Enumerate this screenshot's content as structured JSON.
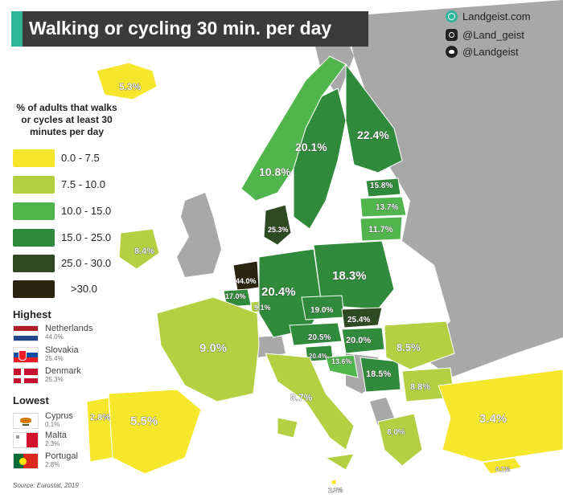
{
  "header": {
    "title": "Walking or cycling 30 min. per day"
  },
  "social": {
    "website": "Landgeist.com",
    "instagram": "@Land_geist",
    "twitter": "@Landgeist"
  },
  "legend": {
    "title_lines": [
      "% of adults that walks",
      "or cycles at least 30",
      "minutes per day"
    ],
    "bins": [
      {
        "label": "0.0  -  7.5",
        "color": "#f5e72c"
      },
      {
        "label": "7.5  -  10.0",
        "color": "#b4cf42"
      },
      {
        "label": "10.0 - 15.0",
        "color": "#4fb54c"
      },
      {
        "label": "15.0 - 25.0",
        "color": "#2f8a3c"
      },
      {
        "label": "25.0 - 30.0",
        "color": "#2e4a22"
      },
      {
        "label": ">30.0",
        "color": "#2b2510"
      }
    ]
  },
  "highest": {
    "heading": "Highest",
    "items": [
      {
        "name": "Netherlands",
        "value": "44.0%",
        "flag": "netherlands-flag"
      },
      {
        "name": "Slovakia",
        "value": "25.4%",
        "flag": "slovakia-flag"
      },
      {
        "name": "Denmark",
        "value": "25.3%",
        "flag": "denmark-flag"
      }
    ]
  },
  "lowest": {
    "heading": "Lowest",
    "items": [
      {
        "name": "Cyprus",
        "value": "0.1%",
        "flag": "cyprus-flag"
      },
      {
        "name": "Malta",
        "value": "2.3%",
        "flag": "malta-flag"
      },
      {
        "name": "Portugal",
        "value": "2.8%",
        "flag": "portugal-flag"
      }
    ]
  },
  "source": "Source: Eurostat, 2019",
  "map_labels": {
    "iceland": "5.3%",
    "norway": "10.8%",
    "sweden": "20.1%",
    "finland": "22.4%",
    "estonia": "15.8%",
    "latvia": "13.7%",
    "lithuania": "11.7%",
    "denmark": "25.3%",
    "ireland": "8.4%",
    "netherlands": "44.0%",
    "belgium": "17.0%",
    "luxembourg": "9.1%",
    "germany": "20.4%",
    "poland": "18.3%",
    "czechia": "19.0%",
    "slovakia": "25.4%",
    "austria": "20.5%",
    "hungary": "20.0%",
    "slovenia": "20.4%",
    "croatia": "13.6%",
    "serbia": "18.5%",
    "romania": "8.5%",
    "bulgaria": "8.8%",
    "france": "9.0%",
    "italy": "8.7%",
    "portugal": "2.8%",
    "spain": "5.5%",
    "greece": "8.0%",
    "turkey": "3.4%",
    "cyprus": "0.1%",
    "malta": "2.3%"
  },
  "colors": {
    "sea": "#ffffff",
    "non_eu_land": "#a8a8a8",
    "accent": "#2fb59a"
  }
}
